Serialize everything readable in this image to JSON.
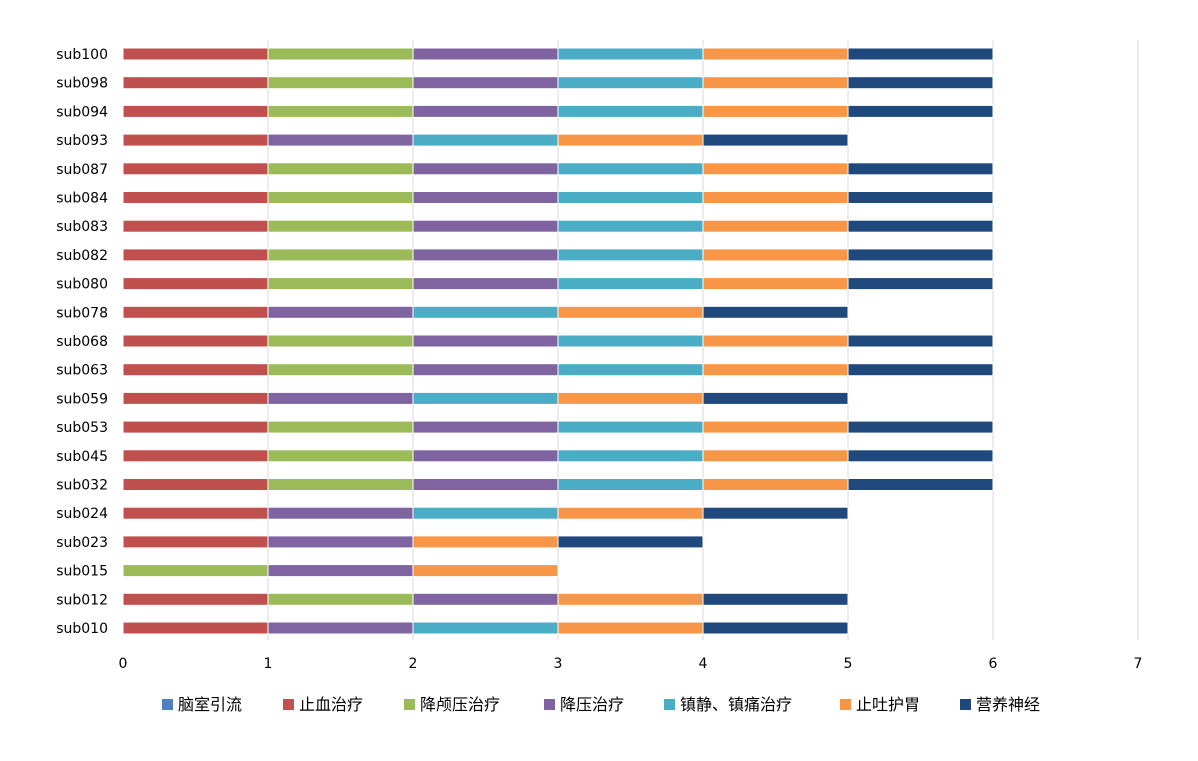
{
  "chart_data": {
    "type": "bar",
    "orientation": "horizontal",
    "stacked": true,
    "categories": [
      "sub100",
      "sub098",
      "sub094",
      "sub093",
      "sub087",
      "sub084",
      "sub083",
      "sub082",
      "sub080",
      "sub078",
      "sub068",
      "sub063",
      "sub059",
      "sub053",
      "sub045",
      "sub032",
      "sub024",
      "sub023",
      "sub015",
      "sub012",
      "sub010"
    ],
    "series": [
      {
        "name": "脑室引流",
        "color": "#4F81BD",
        "values": [
          0,
          0,
          0,
          0,
          0,
          0,
          0,
          0,
          0,
          0,
          0,
          0,
          0,
          0,
          0,
          0,
          0,
          0,
          0,
          0,
          0
        ]
      },
      {
        "name": "止血治疗",
        "color": "#C0504D",
        "values": [
          1,
          1,
          1,
          1,
          1,
          1,
          1,
          1,
          1,
          1,
          1,
          1,
          1,
          1,
          1,
          1,
          1,
          1,
          0,
          1,
          1
        ]
      },
      {
        "name": "降颅压治疗",
        "color": "#9BBB59",
        "values": [
          1,
          1,
          1,
          0,
          1,
          1,
          1,
          1,
          1,
          0,
          1,
          1,
          0,
          1,
          1,
          1,
          0,
          0,
          1,
          1,
          0
        ]
      },
      {
        "name": "降压治疗",
        "color": "#8064A2",
        "values": [
          1,
          1,
          1,
          1,
          1,
          1,
          1,
          1,
          1,
          1,
          1,
          1,
          1,
          1,
          1,
          1,
          1,
          1,
          1,
          1,
          1
        ]
      },
      {
        "name": "镇静、镇痛治疗",
        "color": "#4BACC6",
        "values": [
          1,
          1,
          1,
          1,
          1,
          1,
          1,
          1,
          1,
          1,
          1,
          1,
          1,
          1,
          1,
          1,
          1,
          0,
          0,
          0,
          1
        ]
      },
      {
        "name": "止吐护胃",
        "color": "#F79646",
        "values": [
          1,
          1,
          1,
          1,
          1,
          1,
          1,
          1,
          1,
          1,
          1,
          1,
          1,
          1,
          1,
          1,
          1,
          1,
          1,
          1,
          1
        ]
      },
      {
        "name": "营养神经",
        "color": "#1F497D",
        "values": [
          1,
          1,
          1,
          1,
          1,
          1,
          1,
          1,
          1,
          1,
          1,
          1,
          1,
          1,
          1,
          1,
          1,
          1,
          0,
          1,
          1
        ]
      }
    ],
    "xlim": [
      0,
      7
    ],
    "x_ticks": [
      0,
      1,
      2,
      3,
      4,
      5,
      6,
      7
    ],
    "grid": "vertical",
    "legend_position": "bottom"
  }
}
